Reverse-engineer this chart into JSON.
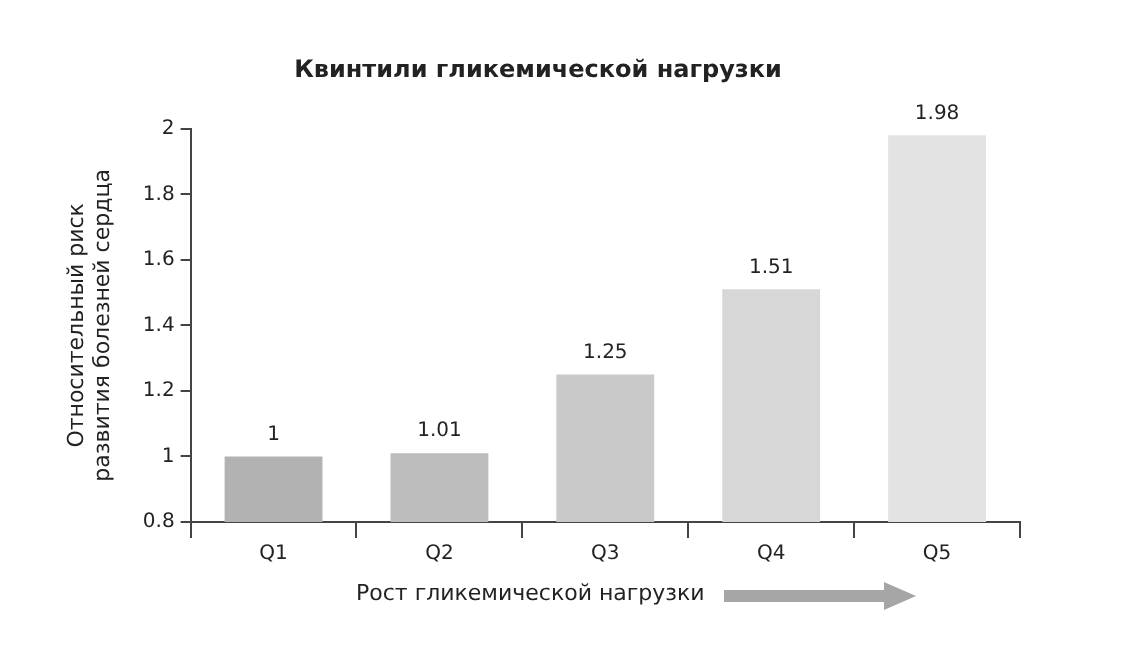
{
  "chart_data": {
    "type": "bar",
    "title": "Квинтили гликемической нагрузки",
    "xlabel": "Рост гликемической нагрузки",
    "ylabel": "Относительный риск развития болезней сердца",
    "categories": [
      "Q1",
      "Q2",
      "Q3",
      "Q4",
      "Q5"
    ],
    "values": [
      1,
      1.01,
      1.25,
      1.51,
      1.98
    ],
    "colors": [
      "#b2b2b2",
      "#bdbdbd",
      "#c9c9c9",
      "#d7d7d7",
      "#e3e3e3"
    ],
    "ylim": [
      0.8,
      2
    ],
    "yticks": [
      0.8,
      1,
      1.2,
      1.4,
      1.6,
      1.8,
      2
    ],
    "grid": false,
    "legend": false,
    "data_labels": true
  }
}
